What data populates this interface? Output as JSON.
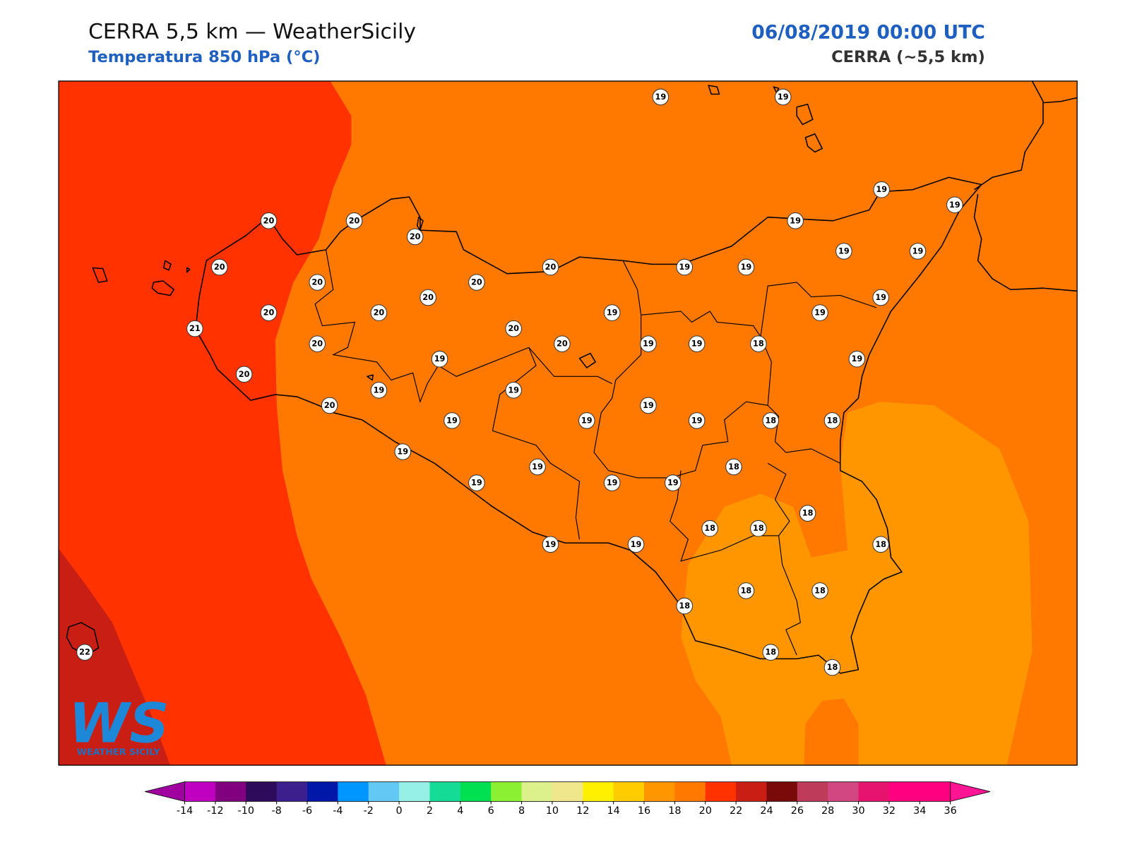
{
  "header": {
    "title": "CERRA 5,5 km — WeatherSicily",
    "subtitle": "Temperatura 850 hPa (°C)",
    "date": "06/08/2019 00:00 UTC",
    "model": "CERRA (~5,5 km)"
  },
  "stations": [
    19,
    19,
    19,
    19,
    20,
    20,
    20,
    19,
    20,
    20,
    20,
    20,
    19,
    19,
    19,
    19,
    20,
    19,
    20,
    20,
    19,
    19,
    21,
    20,
    20,
    20,
    19,
    19,
    18,
    19,
    19,
    20,
    19,
    19,
    20,
    19,
    19,
    19,
    19,
    18,
    18,
    19,
    19,
    18,
    19,
    19,
    19,
    18,
    18,
    18,
    19,
    19,
    18,
    18,
    18,
    18,
    18,
    18,
    22
  ],
  "colorbar": {
    "ticks": [
      -14,
      -12,
      -10,
      -8,
      -6,
      -4,
      -2,
      0,
      2,
      4,
      6,
      8,
      10,
      12,
      14,
      16,
      18,
      20,
      22,
      24,
      26,
      28,
      30,
      32,
      34,
      36
    ],
    "colors": [
      "#c000c0",
      "#800080",
      "#2e0a5a",
      "#3c1e8c",
      "#0018a8",
      "#0096ff",
      "#64c8f5",
      "#96f0e6",
      "#14dc96",
      "#00e050",
      "#8cf032",
      "#dcf08c",
      "#f0e68c",
      "#fff000",
      "#ffcc00",
      "#ff9600",
      "#ff7800",
      "#ff3200",
      "#c81e14",
      "#780a0a",
      "#be3c5a",
      "#d24682",
      "#e6146e",
      "#ff0080",
      "#ff0080"
    ],
    "under_color": "#a000a0",
    "over_color": "#ff1493"
  },
  "logo": {
    "mark": "WS",
    "caption": "WEATHER SICILY"
  }
}
